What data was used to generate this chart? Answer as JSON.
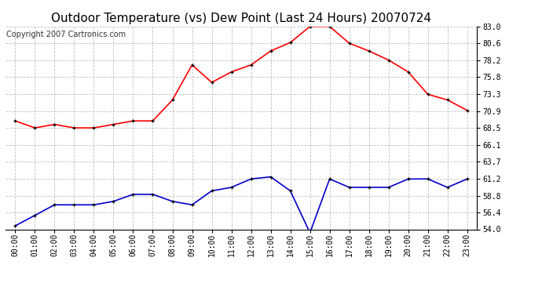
{
  "title": "Outdoor Temperature (vs) Dew Point (Last 24 Hours) 20070724",
  "copyright": "Copyright 2007 Cartronics.com",
  "x_labels": [
    "00:00",
    "01:00",
    "02:00",
    "03:00",
    "04:00",
    "05:00",
    "06:00",
    "07:00",
    "08:00",
    "09:00",
    "10:00",
    "11:00",
    "12:00",
    "13:00",
    "14:00",
    "15:00",
    "16:00",
    "17:00",
    "18:00",
    "19:00",
    "20:00",
    "21:00",
    "22:00",
    "23:00"
  ],
  "temp_data": [
    69.5,
    68.5,
    69.0,
    68.5,
    68.5,
    69.0,
    69.5,
    69.5,
    72.5,
    77.5,
    75.0,
    76.5,
    77.5,
    79.5,
    80.7,
    83.0,
    83.0,
    80.6,
    79.5,
    78.2,
    76.5,
    73.3,
    72.5,
    71.0
  ],
  "dew_data": [
    54.5,
    56.0,
    57.5,
    57.5,
    57.5,
    58.0,
    59.0,
    59.0,
    58.0,
    57.5,
    59.5,
    60.0,
    61.2,
    61.5,
    59.5,
    53.5,
    61.2,
    60.0,
    60.0,
    60.0,
    61.2,
    61.2,
    60.0,
    61.2
  ],
  "temp_color": "#ff0000",
  "dew_color": "#0000cc",
  "marker_color": "#000000",
  "bg_color": "#ffffff",
  "grid_color": "#c0c0c0",
  "y_min": 54.0,
  "y_max": 83.0,
  "y_ticks": [
    54.0,
    56.4,
    58.8,
    61.2,
    63.7,
    66.1,
    68.5,
    70.9,
    73.3,
    75.8,
    78.2,
    80.6,
    83.0
  ],
  "title_fontsize": 11,
  "copyright_fontsize": 7,
  "tick_fontsize": 7,
  "line_width": 1.2,
  "marker_size": 3.5
}
